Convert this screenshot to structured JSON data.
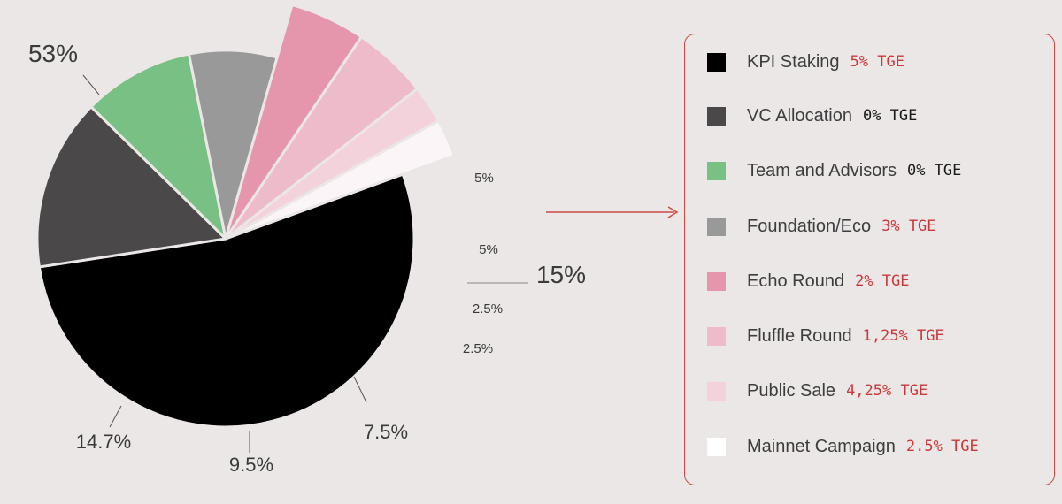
{
  "chart_data": {
    "type": "pie",
    "slices": [
      {
        "name": "KPI Staking",
        "value": 53,
        "label": "53%",
        "color": "#000000"
      },
      {
        "name": "VC Allocation",
        "value": 14.7,
        "label": "14.7%",
        "color": "#4a4849"
      },
      {
        "name": "Team and Advisors",
        "value": 9.5,
        "label": "9.5%",
        "color": "#78c083"
      },
      {
        "name": "Foundation/Eco",
        "value": 7.5,
        "label": "7.5%",
        "color": "#999999"
      },
      {
        "name": "Echo Round",
        "value": 5,
        "label": "5%",
        "color": "#e596ad"
      },
      {
        "name": "Fluffle Round",
        "value": 5,
        "label": "5%",
        "color": "#eebbca"
      },
      {
        "name": "Public Sale",
        "value": 2.5,
        "label": "2.5%",
        "color": "#f4d2dc"
      },
      {
        "name": "Mainnet Campaign",
        "value": 2.5,
        "label": "2.5%",
        "color": "#fbf5f7"
      }
    ],
    "group_label": "15%",
    "legend_position": "right"
  },
  "legend": [
    {
      "name": "KPI Staking",
      "tge": "5% TGE",
      "color": "#000000",
      "tge_color": "#c9393a"
    },
    {
      "name": "VC Allocation",
      "tge": "0% TGE",
      "color": "#4a4849",
      "tge_color": "#1a1a1a"
    },
    {
      "name": "Team and Advisors",
      "tge": "0% TGE",
      "color": "#78c083",
      "tge_color": "#1a1a1a"
    },
    {
      "name": "Foundation/Eco",
      "tge": "3% TGE",
      "color": "#999999",
      "tge_color": "#c9393a"
    },
    {
      "name": "Echo Round",
      "tge": "2% TGE",
      "color": "#e596ad",
      "tge_color": "#c9393a"
    },
    {
      "name": "Fluffle Round",
      "tge": "1,25% TGE",
      "color": "#eebbca",
      "tge_color": "#c9393a"
    },
    {
      "name": "Public Sale",
      "tge": "4,25% TGE",
      "color": "#f4d2dc",
      "tge_color": "#c9393a"
    },
    {
      "name": "Mainnet Campaign",
      "tge": "2.5% TGE",
      "color": "#ffffff",
      "tge_color": "#c9393a"
    }
  ]
}
